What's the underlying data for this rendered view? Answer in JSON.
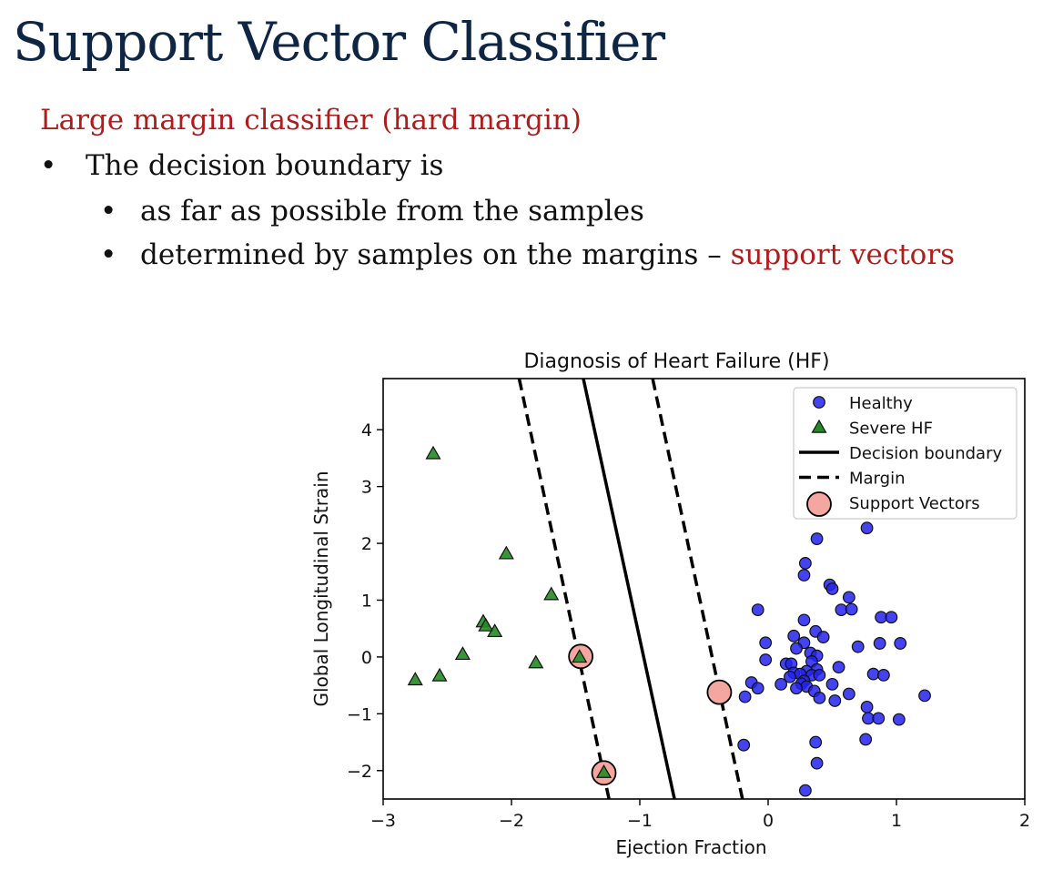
{
  "slide": {
    "title": "Support Vector Classifier",
    "subtitle": "Large margin classifier (hard margin)",
    "bullets": [
      {
        "text": "The decision boundary is"
      },
      {
        "text": "as far as possible from the samples"
      },
      {
        "text": "determined by samples on the margins – ",
        "highlight": "support vectors"
      }
    ],
    "bullet_glyph": "•",
    "colors": {
      "title": "#0f2544",
      "accent": "#b01c1c",
      "body": "#111111"
    }
  },
  "chart_data": {
    "type": "scatter",
    "title": "Diagnosis of Heart Failure (HF)",
    "xlabel": "Ejection Fraction",
    "ylabel": "Global Longitudinal Strain",
    "xlim": [
      -3,
      2
    ],
    "ylim": [
      -2.5,
      4.9
    ],
    "xticks": [
      -3,
      -2,
      -1,
      0,
      1,
      2
    ],
    "xtick_labels": [
      "−3",
      "−2",
      "−1",
      "0",
      "1",
      "2"
    ],
    "yticks": [
      -2,
      -1,
      0,
      1,
      2,
      3,
      4
    ],
    "ytick_labels": [
      "−2",
      "−1",
      "0",
      "1",
      "2",
      "3",
      "4"
    ],
    "grid": false,
    "legend_position": "top-right",
    "series": [
      {
        "name": "Healthy",
        "marker": "circle",
        "color": "#2222ee",
        "points": [
          [
            0.77,
            2.27
          ],
          [
            0.38,
            2.08
          ],
          [
            0.29,
            1.65
          ],
          [
            0.28,
            1.44
          ],
          [
            0.48,
            1.27
          ],
          [
            0.5,
            1.2
          ],
          [
            0.63,
            1.05
          ],
          [
            0.57,
            0.83
          ],
          [
            0.65,
            0.84
          ],
          [
            -0.08,
            0.83
          ],
          [
            0.88,
            0.7
          ],
          [
            0.96,
            0.7
          ],
          [
            0.28,
            0.65
          ],
          [
            0.37,
            0.45
          ],
          [
            0.2,
            0.37
          ],
          [
            0.43,
            0.35
          ],
          [
            0.28,
            0.25
          ],
          [
            -0.02,
            0.25
          ],
          [
            0.7,
            0.18
          ],
          [
            0.87,
            0.24
          ],
          [
            1.03,
            0.24
          ],
          [
            0.22,
            0.15
          ],
          [
            0.33,
            0.07
          ],
          [
            0.38,
            0.02
          ],
          [
            -0.02,
            -0.05
          ],
          [
            0.14,
            -0.12
          ],
          [
            0.18,
            -0.12
          ],
          [
            0.34,
            -0.08
          ],
          [
            0.55,
            -0.18
          ],
          [
            0.38,
            -0.22
          ],
          [
            0.3,
            -0.25
          ],
          [
            0.2,
            -0.28
          ],
          [
            0.25,
            -0.3
          ],
          [
            0.34,
            -0.32
          ],
          [
            0.17,
            -0.35
          ],
          [
            0.28,
            -0.42
          ],
          [
            0.4,
            -0.32
          ],
          [
            0.82,
            -0.3
          ],
          [
            0.9,
            -0.32
          ],
          [
            -0.13,
            -0.45
          ],
          [
            0.1,
            -0.48
          ],
          [
            0.26,
            -0.47
          ],
          [
            0.3,
            -0.52
          ],
          [
            0.22,
            -0.55
          ],
          [
            0.5,
            -0.48
          ],
          [
            0.36,
            -0.6
          ],
          [
            0.4,
            -0.72
          ],
          [
            0.52,
            -0.77
          ],
          [
            0.63,
            -0.65
          ],
          [
            -0.08,
            -0.55
          ],
          [
            -0.18,
            -0.7
          ],
          [
            1.22,
            -0.68
          ],
          [
            0.77,
            -0.88
          ],
          [
            0.78,
            -1.08
          ],
          [
            0.86,
            -1.08
          ],
          [
            1.02,
            -1.1
          ],
          [
            0.76,
            -1.45
          ],
          [
            0.37,
            -1.5
          ],
          [
            -0.19,
            -1.55
          ],
          [
            0.38,
            -1.87
          ],
          [
            0.29,
            -2.35
          ]
        ]
      },
      {
        "name": "Severe HF",
        "marker": "triangle",
        "color": "#228b22",
        "points": [
          [
            -2.61,
            3.58
          ],
          [
            -2.04,
            1.82
          ],
          [
            -1.69,
            1.1
          ],
          [
            -2.22,
            0.62
          ],
          [
            -2.2,
            0.55
          ],
          [
            -2.13,
            0.45
          ],
          [
            -2.38,
            0.05
          ],
          [
            -1.81,
            -0.1
          ],
          [
            -2.75,
            -0.4
          ],
          [
            -2.56,
            -0.33
          ],
          [
            -1.47,
            0.0
          ],
          [
            -1.28,
            -2.03
          ]
        ]
      }
    ],
    "support_vectors": {
      "name": "Support Vectors",
      "color": "#f4a6a1",
      "points": [
        [
          -1.46,
          0.01
        ],
        [
          -0.38,
          -0.62
        ],
        [
          -1.28,
          -2.04
        ]
      ]
    },
    "lines": [
      {
        "name": "Decision boundary",
        "style": "solid",
        "points": [
          [
            -1.44,
            4.9
          ],
          [
            -0.73,
            -2.5
          ]
        ]
      },
      {
        "name": "Margin",
        "style": "dashed",
        "points": [
          [
            -1.94,
            4.9
          ],
          [
            -1.24,
            -2.5
          ]
        ]
      },
      {
        "name": "Margin",
        "style": "dashed",
        "points": [
          [
            -0.9,
            4.9
          ],
          [
            -0.2,
            -2.5
          ]
        ]
      }
    ],
    "legend": [
      {
        "label": "Healthy",
        "kind": "circle"
      },
      {
        "label": "Severe HF",
        "kind": "triangle"
      },
      {
        "label": "Decision boundary",
        "kind": "solid"
      },
      {
        "label": "Margin",
        "kind": "dashed"
      },
      {
        "label": "Support Vectors",
        "kind": "sv"
      }
    ]
  }
}
